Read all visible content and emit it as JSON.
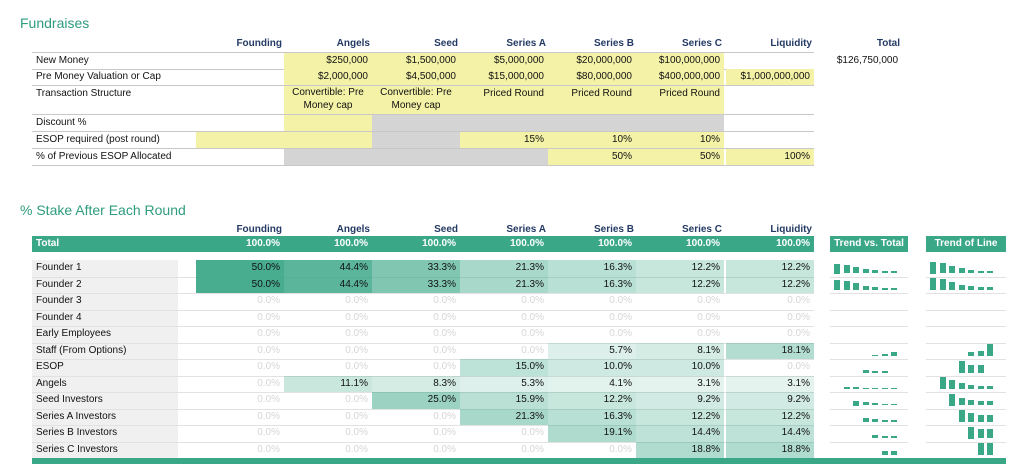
{
  "fundraises": {
    "title": "Fundraises",
    "columns": [
      "Founding",
      "Angels",
      "Seed",
      "Series A",
      "Series B",
      "Series C",
      "Liquidity",
      "Total"
    ],
    "rows": [
      {
        "label": "New Money",
        "values": [
          "",
          "$250,000",
          "$1,500,000",
          "$5,000,000",
          "$20,000,000",
          "$100,000,000",
          "",
          "$126,750,000"
        ]
      },
      {
        "label": "Pre Money Valuation or Cap",
        "values": [
          "",
          "$2,000,000",
          "$4,500,000",
          "$15,000,000",
          "$80,000,000",
          "$400,000,000",
          "$1,000,000,000",
          ""
        ]
      },
      {
        "label": "Transaction Structure",
        "values": [
          "",
          "Convertible: Pre Money cap",
          "Convertible: Pre Money cap",
          "Priced Round",
          "Priced Round",
          "Priced Round",
          "",
          ""
        ]
      },
      {
        "label": "Discount %",
        "values": [
          "",
          "",
          "",
          "",
          "",
          "",
          "",
          ""
        ]
      },
      {
        "label": "ESOP required (post round)",
        "values": [
          "",
          "",
          "",
          "15%",
          "10%",
          "10%",
          "",
          ""
        ]
      },
      {
        "label": "% of Previous ESOP Allocated",
        "values": [
          "",
          "",
          "",
          "",
          "50%",
          "50%",
          "100%",
          ""
        ]
      }
    ]
  },
  "stake": {
    "title": "% Stake After Each Round",
    "columns": [
      "Founding",
      "Angels",
      "Seed",
      "Series A",
      "Series B",
      "Series C",
      "Liquidity"
    ],
    "total_label": "Total",
    "total_values": [
      "100.0%",
      "100.0%",
      "100.0%",
      "100.0%",
      "100.0%",
      "100.0%",
      "100.0%"
    ],
    "trend_total_label": "Trend vs. Total",
    "trend_line_label": "Trend of Line",
    "rows": [
      {
        "label": "Founder 1",
        "values": [
          "50.0%",
          "44.4%",
          "33.3%",
          "21.3%",
          "16.3%",
          "12.2%",
          "12.2%"
        ]
      },
      {
        "label": "Founder 2",
        "values": [
          "50.0%",
          "44.4%",
          "33.3%",
          "21.3%",
          "16.3%",
          "12.2%",
          "12.2%"
        ]
      },
      {
        "label": "Founder 3",
        "values": [
          "0.0%",
          "0.0%",
          "0.0%",
          "0.0%",
          "0.0%",
          "0.0%",
          "0.0%"
        ]
      },
      {
        "label": "Founder 4",
        "values": [
          "0.0%",
          "0.0%",
          "0.0%",
          "0.0%",
          "0.0%",
          "0.0%",
          "0.0%"
        ]
      },
      {
        "label": "Early Employees",
        "values": [
          "0.0%",
          "0.0%",
          "0.0%",
          "0.0%",
          "0.0%",
          "0.0%",
          "0.0%"
        ]
      },
      {
        "label": "Staff (From Options)",
        "values": [
          "0.0%",
          "0.0%",
          "0.0%",
          "0.0%",
          "5.7%",
          "8.1%",
          "18.1%"
        ]
      },
      {
        "label": "ESOP",
        "values": [
          "0.0%",
          "0.0%",
          "0.0%",
          "15.0%",
          "10.0%",
          "10.0%",
          "0.0%"
        ]
      },
      {
        "label": "Angels",
        "values": [
          "0.0%",
          "11.1%",
          "8.3%",
          "5.3%",
          "4.1%",
          "3.1%",
          "3.1%"
        ]
      },
      {
        "label": "Seed Investors",
        "values": [
          "0.0%",
          "0.0%",
          "25.0%",
          "15.9%",
          "12.2%",
          "9.2%",
          "9.2%"
        ]
      },
      {
        "label": "Series A Investors",
        "values": [
          "0.0%",
          "0.0%",
          "0.0%",
          "21.3%",
          "16.3%",
          "12.2%",
          "12.2%"
        ]
      },
      {
        "label": "Series B Investors",
        "values": [
          "0.0%",
          "0.0%",
          "0.0%",
          "0.0%",
          "19.1%",
          "14.4%",
          "14.4%"
        ]
      },
      {
        "label": "Series C Investors",
        "values": [
          "0.0%",
          "0.0%",
          "0.0%",
          "0.0%",
          "0.0%",
          "18.8%",
          "18.8%"
        ]
      }
    ]
  },
  "colors": {
    "accent": "#2e9c7e",
    "header_text": "#243a64",
    "input_yellow": "#f4f2a7",
    "grey": "#d4d4d4",
    "heat": "#3aa786"
  }
}
